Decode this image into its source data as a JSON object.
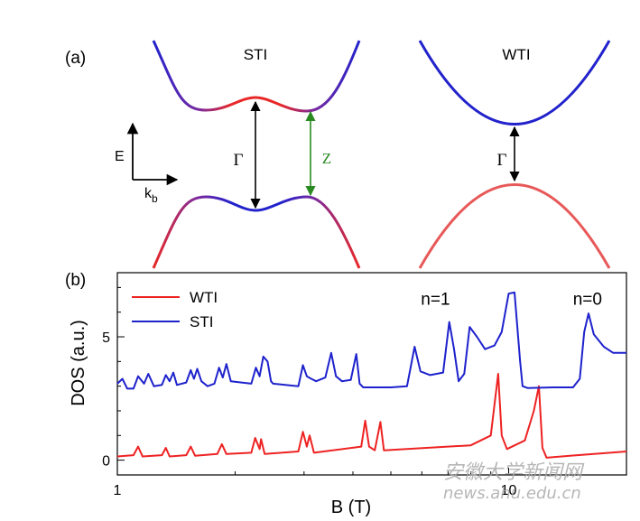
{
  "figure": {
    "panel_a_label": "(a)",
    "panel_b_label": "(b)",
    "band_sti_title": "STI",
    "band_wti_title": "WTI",
    "axis_e_label": "E",
    "axis_k_label": "k",
    "axis_k_subscript": "b",
    "gap_gamma_sti": "Γ",
    "gap_z_sti": "Z",
    "gap_gamma_wti": "Γ"
  },
  "colors": {
    "wti": "#ee2222",
    "sti": "#1e22cc",
    "band_red": "#e82828",
    "band_blue": "#2222cc",
    "band_purple": "#7a2aa0",
    "wti_valence": "#e85858",
    "z_arrow": "#2a8a22",
    "axes": "#000000",
    "watermark": "#aaaaaa"
  },
  "chart_data": {
    "type": "line",
    "title": "",
    "xlabel": "B (T)",
    "ylabel": "DOS (a.u.)",
    "x_scale": "log",
    "xlim": [
      1,
      20
    ],
    "ylim": [
      -0.6,
      7.6
    ],
    "xticks": [
      1,
      10
    ],
    "xtick_labels": [
      "1",
      "10"
    ],
    "yticks": [
      0,
      5
    ],
    "ytick_labels": [
      "0",
      "5"
    ],
    "legend_position": "top-left",
    "grid": false,
    "annotations": [
      {
        "text": "n=1",
        "x": 6.5,
        "y": 6.3
      },
      {
        "text": "n=0",
        "x": 15.9,
        "y": 6.3
      }
    ],
    "series": [
      {
        "name": "WTI",
        "color": "#ee2222",
        "points": [
          [
            1.0,
            0.15
          ],
          [
            1.1,
            0.2
          ],
          [
            1.13,
            0.55
          ],
          [
            1.16,
            0.15
          ],
          [
            1.3,
            0.2
          ],
          [
            1.33,
            0.5
          ],
          [
            1.36,
            0.15
          ],
          [
            1.5,
            0.2
          ],
          [
            1.54,
            0.55
          ],
          [
            1.58,
            0.18
          ],
          [
            1.8,
            0.25
          ],
          [
            1.85,
            0.65
          ],
          [
            1.9,
            0.25
          ],
          [
            2.2,
            0.3
          ],
          [
            2.25,
            0.9
          ],
          [
            2.31,
            0.45
          ],
          [
            2.33,
            0.85
          ],
          [
            2.38,
            0.25
          ],
          [
            2.9,
            0.35
          ],
          [
            2.98,
            1.15
          ],
          [
            3.05,
            0.55
          ],
          [
            3.1,
            1.0
          ],
          [
            3.18,
            0.3
          ],
          [
            4.2,
            0.55
          ],
          [
            4.3,
            1.6
          ],
          [
            4.4,
            0.55
          ],
          [
            4.55,
            0.4
          ],
          [
            4.7,
            1.55
          ],
          [
            4.8,
            0.4
          ],
          [
            8.0,
            0.6
          ],
          [
            9.0,
            1.0
          ],
          [
            9.4,
            3.5
          ],
          [
            9.6,
            1.0
          ],
          [
            9.9,
            0.45
          ],
          [
            11.0,
            0.8
          ],
          [
            11.6,
            2.0
          ],
          [
            11.95,
            3.0
          ],
          [
            12.2,
            0.5
          ],
          [
            12.5,
            0.1
          ],
          [
            15.0,
            0.2
          ],
          [
            20.0,
            0.35
          ]
        ]
      },
      {
        "name": "STI",
        "color": "#1e22cc",
        "points": [
          [
            1.0,
            3.1
          ],
          [
            1.03,
            3.3
          ],
          [
            1.06,
            2.9
          ],
          [
            1.1,
            2.9
          ],
          [
            1.13,
            3.4
          ],
          [
            1.17,
            3.1
          ],
          [
            1.2,
            3.5
          ],
          [
            1.24,
            3.0
          ],
          [
            1.3,
            3.05
          ],
          [
            1.33,
            3.45
          ],
          [
            1.36,
            3.2
          ],
          [
            1.39,
            3.55
          ],
          [
            1.42,
            3.05
          ],
          [
            1.5,
            3.15
          ],
          [
            1.54,
            3.65
          ],
          [
            1.57,
            3.3
          ],
          [
            1.6,
            3.7
          ],
          [
            1.64,
            3.2
          ],
          [
            1.7,
            3.0
          ],
          [
            1.77,
            3.1
          ],
          [
            1.82,
            3.75
          ],
          [
            1.86,
            3.35
          ],
          [
            1.9,
            3.9
          ],
          [
            1.95,
            3.2
          ],
          [
            2.2,
            3.1
          ],
          [
            2.26,
            3.75
          ],
          [
            2.31,
            3.4
          ],
          [
            2.36,
            4.2
          ],
          [
            2.42,
            4.0
          ],
          [
            2.47,
            3.2
          ],
          [
            2.5,
            3.1
          ],
          [
            2.9,
            3.0
          ],
          [
            2.98,
            3.85
          ],
          [
            3.05,
            3.4
          ],
          [
            3.13,
            3.3
          ],
          [
            3.22,
            3.2
          ],
          [
            3.4,
            3.35
          ],
          [
            3.52,
            4.35
          ],
          [
            3.62,
            3.4
          ],
          [
            3.75,
            3.2
          ],
          [
            3.95,
            3.25
          ],
          [
            4.08,
            4.3
          ],
          [
            4.16,
            3.1
          ],
          [
            4.25,
            2.95
          ],
          [
            5.0,
            2.95
          ],
          [
            5.5,
            3.0
          ],
          [
            5.75,
            4.6
          ],
          [
            5.95,
            3.6
          ],
          [
            6.3,
            3.45
          ],
          [
            6.8,
            3.55
          ],
          [
            7.05,
            5.6
          ],
          [
            7.25,
            4.5
          ],
          [
            7.45,
            3.2
          ],
          [
            7.7,
            3.5
          ],
          [
            7.95,
            5.4
          ],
          [
            8.3,
            5.0
          ],
          [
            8.7,
            4.5
          ],
          [
            9.2,
            4.65
          ],
          [
            9.6,
            5.2
          ],
          [
            10.0,
            6.75
          ],
          [
            10.35,
            6.8
          ],
          [
            10.7,
            4.0
          ],
          [
            10.85,
            3.0
          ],
          [
            11.2,
            2.92
          ],
          [
            13.0,
            2.95
          ],
          [
            14.6,
            2.95
          ],
          [
            15.2,
            3.3
          ],
          [
            15.6,
            5.2
          ],
          [
            16.0,
            5.95
          ],
          [
            16.5,
            5.1
          ],
          [
            17.5,
            4.6
          ],
          [
            18.5,
            4.35
          ],
          [
            20.0,
            4.35
          ]
        ]
      }
    ]
  },
  "watermark": {
    "cn": "安徽大学新闻网",
    "en": "news.ahu.edu.cn"
  }
}
